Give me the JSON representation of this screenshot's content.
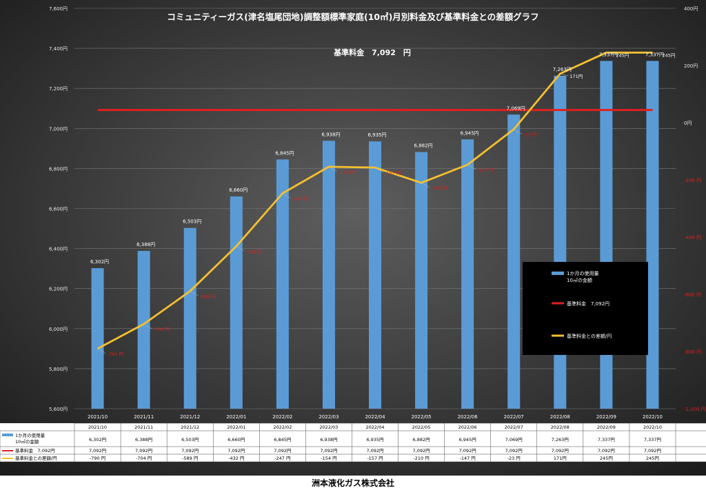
{
  "footer": "洲本液化ガス株式会社",
  "colors": {
    "bar": "#5b9bd5",
    "base_line": "#e0201f",
    "diff_line": "#f5c030",
    "diff_label": "#e0201f"
  },
  "chart_data": {
    "type": "bar",
    "title": "コミュニティーガス(津名塩尾団地)調整額標準家庭(10㎥)月別料金及び基準料金との差額グラフ",
    "subtitle": "基準料金　7,092　円",
    "categories": [
      "2021/10",
      "2021/11",
      "2021/12",
      "2022/01",
      "2022/02",
      "2022/03",
      "2022/04",
      "2022/05",
      "2022/06",
      "2022/07",
      "2022/08",
      "2022/09",
      "2022/10"
    ],
    "ylim": [
      5600,
      7600
    ],
    "y2lim": [
      -1000,
      400
    ],
    "y_ticks": [
      "5,600円",
      "5,800円",
      "6,000円",
      "6,200円",
      "6,400円",
      "6,600円",
      "6,800円",
      "7,000円",
      "7,200円",
      "7,400円",
      "7,600円"
    ],
    "y2_ticks": [
      "-1,000 円",
      "-800 円",
      "-600 円",
      "-400 円",
      "-200 円",
      "0円",
      "200円",
      "400円"
    ],
    "series": [
      {
        "name": "1か月の使用量10㎥の金額",
        "legend_lines": [
          "1か月の使用量",
          "10㎥の金額"
        ],
        "table_lines": [
          "1か月の使用量",
          "10㎥の金額"
        ],
        "type": "bar",
        "axis": "left",
        "values": [
          6302,
          6388,
          6503,
          6660,
          6845,
          6938,
          6935,
          6882,
          6945,
          7069,
          7263,
          7337,
          7337
        ],
        "labels": [
          "6,302円",
          "6,388円",
          "6,503円",
          "6,660円",
          "6,845円",
          "6,938円",
          "6,935円",
          "6,882円",
          "6,945円",
          "7,069円",
          "7,263円",
          "7,337円",
          "7,337円"
        ]
      },
      {
        "name": "基準料金　7,092円",
        "type": "line",
        "axis": "left",
        "values": [
          7092,
          7092,
          7092,
          7092,
          7092,
          7092,
          7092,
          7092,
          7092,
          7092,
          7092,
          7092,
          7092
        ],
        "labels": [
          "7,092円",
          "7,092円",
          "7,092円",
          "7,092円",
          "7,092円",
          "7,092円",
          "7,092円",
          "7,092円",
          "7,092円",
          "7,092円",
          "7,092円",
          "7,092円",
          "7,092円"
        ]
      },
      {
        "name": "基準料金との差額/円",
        "type": "line",
        "axis": "right",
        "values": [
          -790,
          -704,
          -589,
          -432,
          -247,
          -154,
          -157,
          -210,
          -147,
          -23,
          171,
          245,
          245
        ],
        "labels": [
          "-790 円",
          "-704 円",
          "-589 円",
          "-432 円",
          "-247 円",
          "-154 円",
          "-157 円",
          "-210 円",
          "-147 円",
          "-23 円",
          "171円",
          "245円",
          "245円"
        ]
      }
    ],
    "legend_position": "right"
  }
}
